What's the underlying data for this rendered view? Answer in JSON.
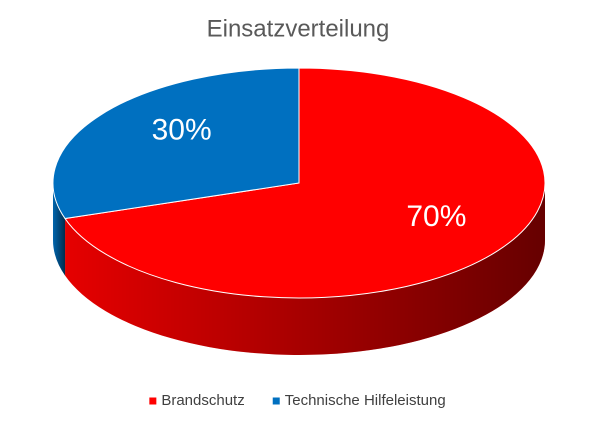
{
  "chart_data": {
    "type": "pie",
    "title": "Einsatzverteilung",
    "categories": [
      "Brandschutz",
      "Technische Hilfeleistung"
    ],
    "values": [
      70,
      30
    ],
    "value_labels": [
      "70%",
      "30%"
    ],
    "colors": [
      "#ff0000",
      "#0070c0"
    ],
    "legend": "bottom"
  }
}
